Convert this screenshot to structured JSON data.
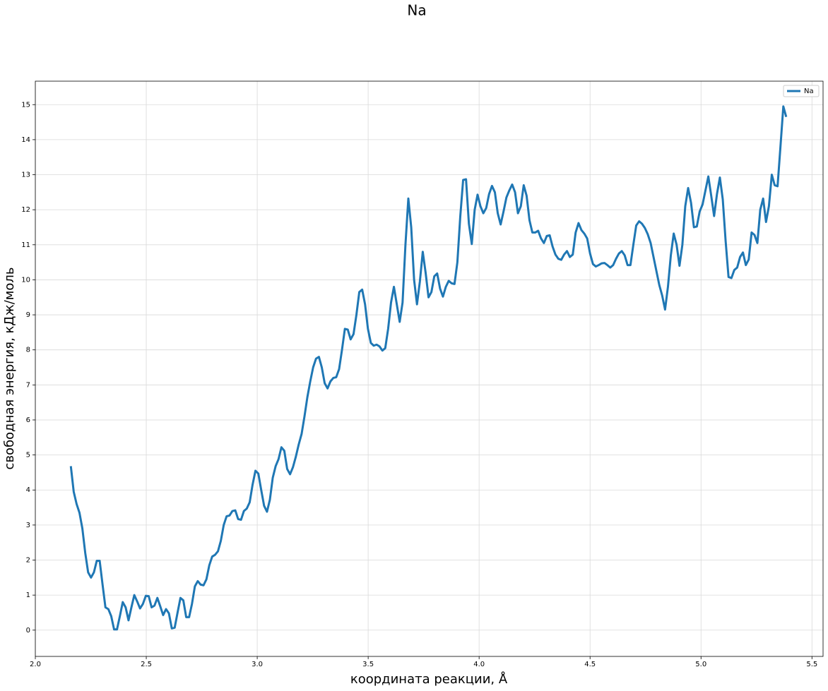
{
  "chart_data": {
    "type": "line",
    "title": "Na",
    "x_label": "координата реакции, Å",
    "y_label": "свободная энергия, кДж/моль",
    "x": [
      2.16,
      2.173,
      2.186,
      2.199,
      2.212,
      2.225,
      2.238,
      2.251,
      2.264,
      2.277,
      2.29,
      2.303,
      2.316,
      2.329,
      2.342,
      2.355,
      2.368,
      2.381,
      2.394,
      2.407,
      2.42,
      2.433,
      2.446,
      2.459,
      2.472,
      2.485,
      2.498,
      2.511,
      2.524,
      2.537,
      2.55,
      2.563,
      2.576,
      2.589,
      2.602,
      2.615,
      2.628,
      2.641,
      2.654,
      2.667,
      2.68,
      2.693,
      2.706,
      2.719,
      2.732,
      2.745,
      2.758,
      2.771,
      2.784,
      2.797,
      2.81,
      2.823,
      2.836,
      2.849,
      2.862,
      2.875,
      2.888,
      2.901,
      2.914,
      2.927,
      2.94,
      2.953,
      2.966,
      2.979,
      2.992,
      3.005,
      3.018,
      3.031,
      3.044,
      3.057,
      3.07,
      3.083,
      3.096,
      3.109,
      3.122,
      3.135,
      3.148,
      3.161,
      3.174,
      3.187,
      3.2,
      3.213,
      3.226,
      3.239,
      3.252,
      3.265,
      3.278,
      3.291,
      3.304,
      3.317,
      3.33,
      3.343,
      3.356,
      3.369,
      3.382,
      3.395,
      3.408,
      3.421,
      3.434,
      3.447,
      3.46,
      3.473,
      3.486,
      3.499,
      3.512,
      3.525,
      3.538,
      3.551,
      3.564,
      3.577,
      3.59,
      3.603,
      3.616,
      3.629,
      3.642,
      3.655,
      3.668,
      3.681,
      3.694,
      3.707,
      3.72,
      3.733,
      3.746,
      3.759,
      3.772,
      3.785,
      3.798,
      3.811,
      3.824,
      3.837,
      3.85,
      3.863,
      3.876,
      3.889,
      3.902,
      3.915,
      3.928,
      3.941,
      3.954,
      3.967,
      3.98,
      3.993,
      4.006,
      4.019,
      4.032,
      4.045,
      4.058,
      4.071,
      4.084,
      4.097,
      4.11,
      4.123,
      4.136,
      4.149,
      4.162,
      4.175,
      4.188,
      4.201,
      4.214,
      4.227,
      4.24,
      4.253,
      4.266,
      4.279,
      4.292,
      4.305,
      4.318,
      4.331,
      4.344,
      4.357,
      4.37,
      4.383,
      4.396,
      4.409,
      4.422,
      4.435,
      4.448,
      4.461,
      4.474,
      4.487,
      4.5,
      4.513,
      4.526,
      4.539,
      4.552,
      4.565,
      4.578,
      4.591,
      4.604,
      4.617,
      4.63,
      4.643,
      4.656,
      4.669,
      4.682,
      4.695,
      4.708,
      4.721,
      4.734,
      4.747,
      4.76,
      4.773,
      4.786,
      4.799,
      4.812,
      4.825,
      4.838,
      4.851,
      4.864,
      4.877,
      4.89,
      4.903,
      4.916,
      4.929,
      4.942,
      4.955,
      4.968,
      4.981,
      4.994,
      5.007,
      5.02,
      5.033,
      5.046,
      5.059,
      5.072,
      5.085,
      5.098,
      5.111,
      5.124,
      5.137,
      5.15,
      5.163,
      5.176,
      5.189,
      5.202,
      5.215,
      5.228,
      5.241,
      5.254,
      5.267,
      5.28,
      5.293,
      5.306,
      5.319,
      5.332,
      5.345,
      5.358,
      5.371,
      5.384
    ],
    "series": [
      {
        "name": "Na",
        "color": "#1f77b4",
        "values": [
          4.68,
          3.95,
          3.6,
          3.35,
          2.9,
          2.2,
          1.65,
          1.5,
          1.65,
          1.98,
          1.98,
          1.3,
          0.65,
          0.6,
          0.4,
          0.02,
          0.02,
          0.4,
          0.8,
          0.65,
          0.28,
          0.65,
          1.0,
          0.82,
          0.62,
          0.75,
          0.98,
          0.97,
          0.65,
          0.7,
          0.92,
          0.68,
          0.43,
          0.6,
          0.48,
          0.05,
          0.07,
          0.5,
          0.92,
          0.85,
          0.37,
          0.37,
          0.75,
          1.25,
          1.4,
          1.3,
          1.28,
          1.45,
          1.85,
          2.1,
          2.15,
          2.25,
          2.55,
          3.0,
          3.25,
          3.27,
          3.4,
          3.42,
          3.17,
          3.15,
          3.4,
          3.47,
          3.65,
          4.15,
          4.55,
          4.47,
          4.0,
          3.55,
          3.38,
          3.72,
          4.35,
          4.68,
          4.88,
          5.22,
          5.12,
          4.6,
          4.45,
          4.65,
          4.95,
          5.3,
          5.6,
          6.1,
          6.65,
          7.1,
          7.5,
          7.75,
          7.8,
          7.5,
          7.05,
          6.9,
          7.1,
          7.2,
          7.22,
          7.45,
          8.0,
          8.6,
          8.58,
          8.3,
          8.45,
          9.0,
          9.65,
          9.72,
          9.3,
          8.6,
          8.2,
          8.12,
          8.15,
          8.1,
          7.98,
          8.05,
          8.6,
          9.35,
          9.8,
          9.3,
          8.8,
          9.35,
          11.0,
          12.32,
          11.5,
          10.0,
          9.3,
          9.95,
          10.8,
          10.2,
          9.5,
          9.65,
          10.1,
          10.18,
          9.75,
          9.52,
          9.8,
          9.97,
          9.9,
          9.88,
          10.5,
          11.8,
          12.85,
          12.87,
          11.6,
          11.02,
          12.0,
          12.43,
          12.1,
          11.9,
          12.05,
          12.45,
          12.68,
          12.5,
          11.9,
          11.58,
          11.95,
          12.35,
          12.55,
          12.72,
          12.5,
          11.9,
          12.1,
          12.7,
          12.4,
          11.7,
          11.35,
          11.35,
          11.4,
          11.18,
          11.05,
          11.25,
          11.27,
          10.95,
          10.72,
          10.6,
          10.57,
          10.72,
          10.82,
          10.65,
          10.72,
          11.35,
          11.62,
          11.42,
          11.32,
          11.18,
          10.75,
          10.45,
          10.38,
          10.42,
          10.47,
          10.48,
          10.42,
          10.35,
          10.42,
          10.6,
          10.75,
          10.82,
          10.7,
          10.42,
          10.42,
          11.0,
          11.55,
          11.67,
          11.6,
          11.48,
          11.3,
          11.05,
          10.65,
          10.25,
          9.85,
          9.55,
          9.15,
          9.8,
          10.7,
          11.32,
          11.0,
          10.4,
          11.0,
          12.1,
          12.62,
          12.2,
          11.5,
          11.52,
          11.95,
          12.15,
          12.55,
          12.95,
          12.4,
          11.82,
          12.45,
          12.92,
          12.3,
          11.1,
          10.08,
          10.05,
          10.28,
          10.35,
          10.65,
          10.78,
          10.42,
          10.58,
          11.35,
          11.28,
          11.05,
          12.0,
          12.32,
          11.65,
          12.1,
          13.0,
          12.7,
          12.67,
          13.8,
          14.95,
          14.65
        ]
      }
    ],
    "xlim": [
      2.0,
      5.55
    ],
    "ylim": [
      -0.75,
      15.67
    ],
    "xticks": [
      {
        "value": 2,
        "label": "2.0"
      },
      2.5,
      {
        "value": 3,
        "label": "3.0"
      },
      3.5,
      {
        "value": 4,
        "label": "4.0"
      },
      4.5,
      {
        "value": 5,
        "label": "5.0"
      },
      5.5
    ],
    "yticks": [
      0,
      1,
      2,
      3,
      4,
      5,
      6,
      7,
      8,
      9,
      10,
      11,
      12,
      13,
      14,
      15
    ],
    "grid": true,
    "legend": "upper right"
  }
}
